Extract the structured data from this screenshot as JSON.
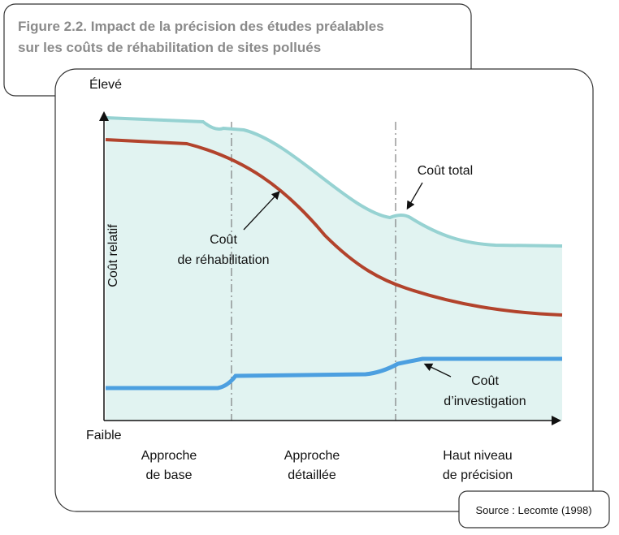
{
  "header": {
    "title_lines": [
      "Figure 2.2. Impact de la précision des études préalables",
      "sur les coûts de réhabilitation de sites pollués"
    ]
  },
  "axes": {
    "y_top": "Élevé",
    "y_bottom": "Faible",
    "y_title": "Coût relatif"
  },
  "curves": [
    {
      "label_lines": [
        "Coût total"
      ]
    },
    {
      "label_lines": [
        "Coût",
        "de réhabilitation"
      ]
    },
    {
      "label_lines": [
        "Coût",
        "d’investigation"
      ]
    }
  ],
  "phases": [
    {
      "label_lines": [
        "Approche",
        "de base"
      ]
    },
    {
      "label_lines": [
        "Approche",
        "détaillée"
      ]
    },
    {
      "label_lines": [
        "Haut niveau",
        "de précision"
      ]
    }
  ],
  "source": "Source : Lecomte (1998)"
}
